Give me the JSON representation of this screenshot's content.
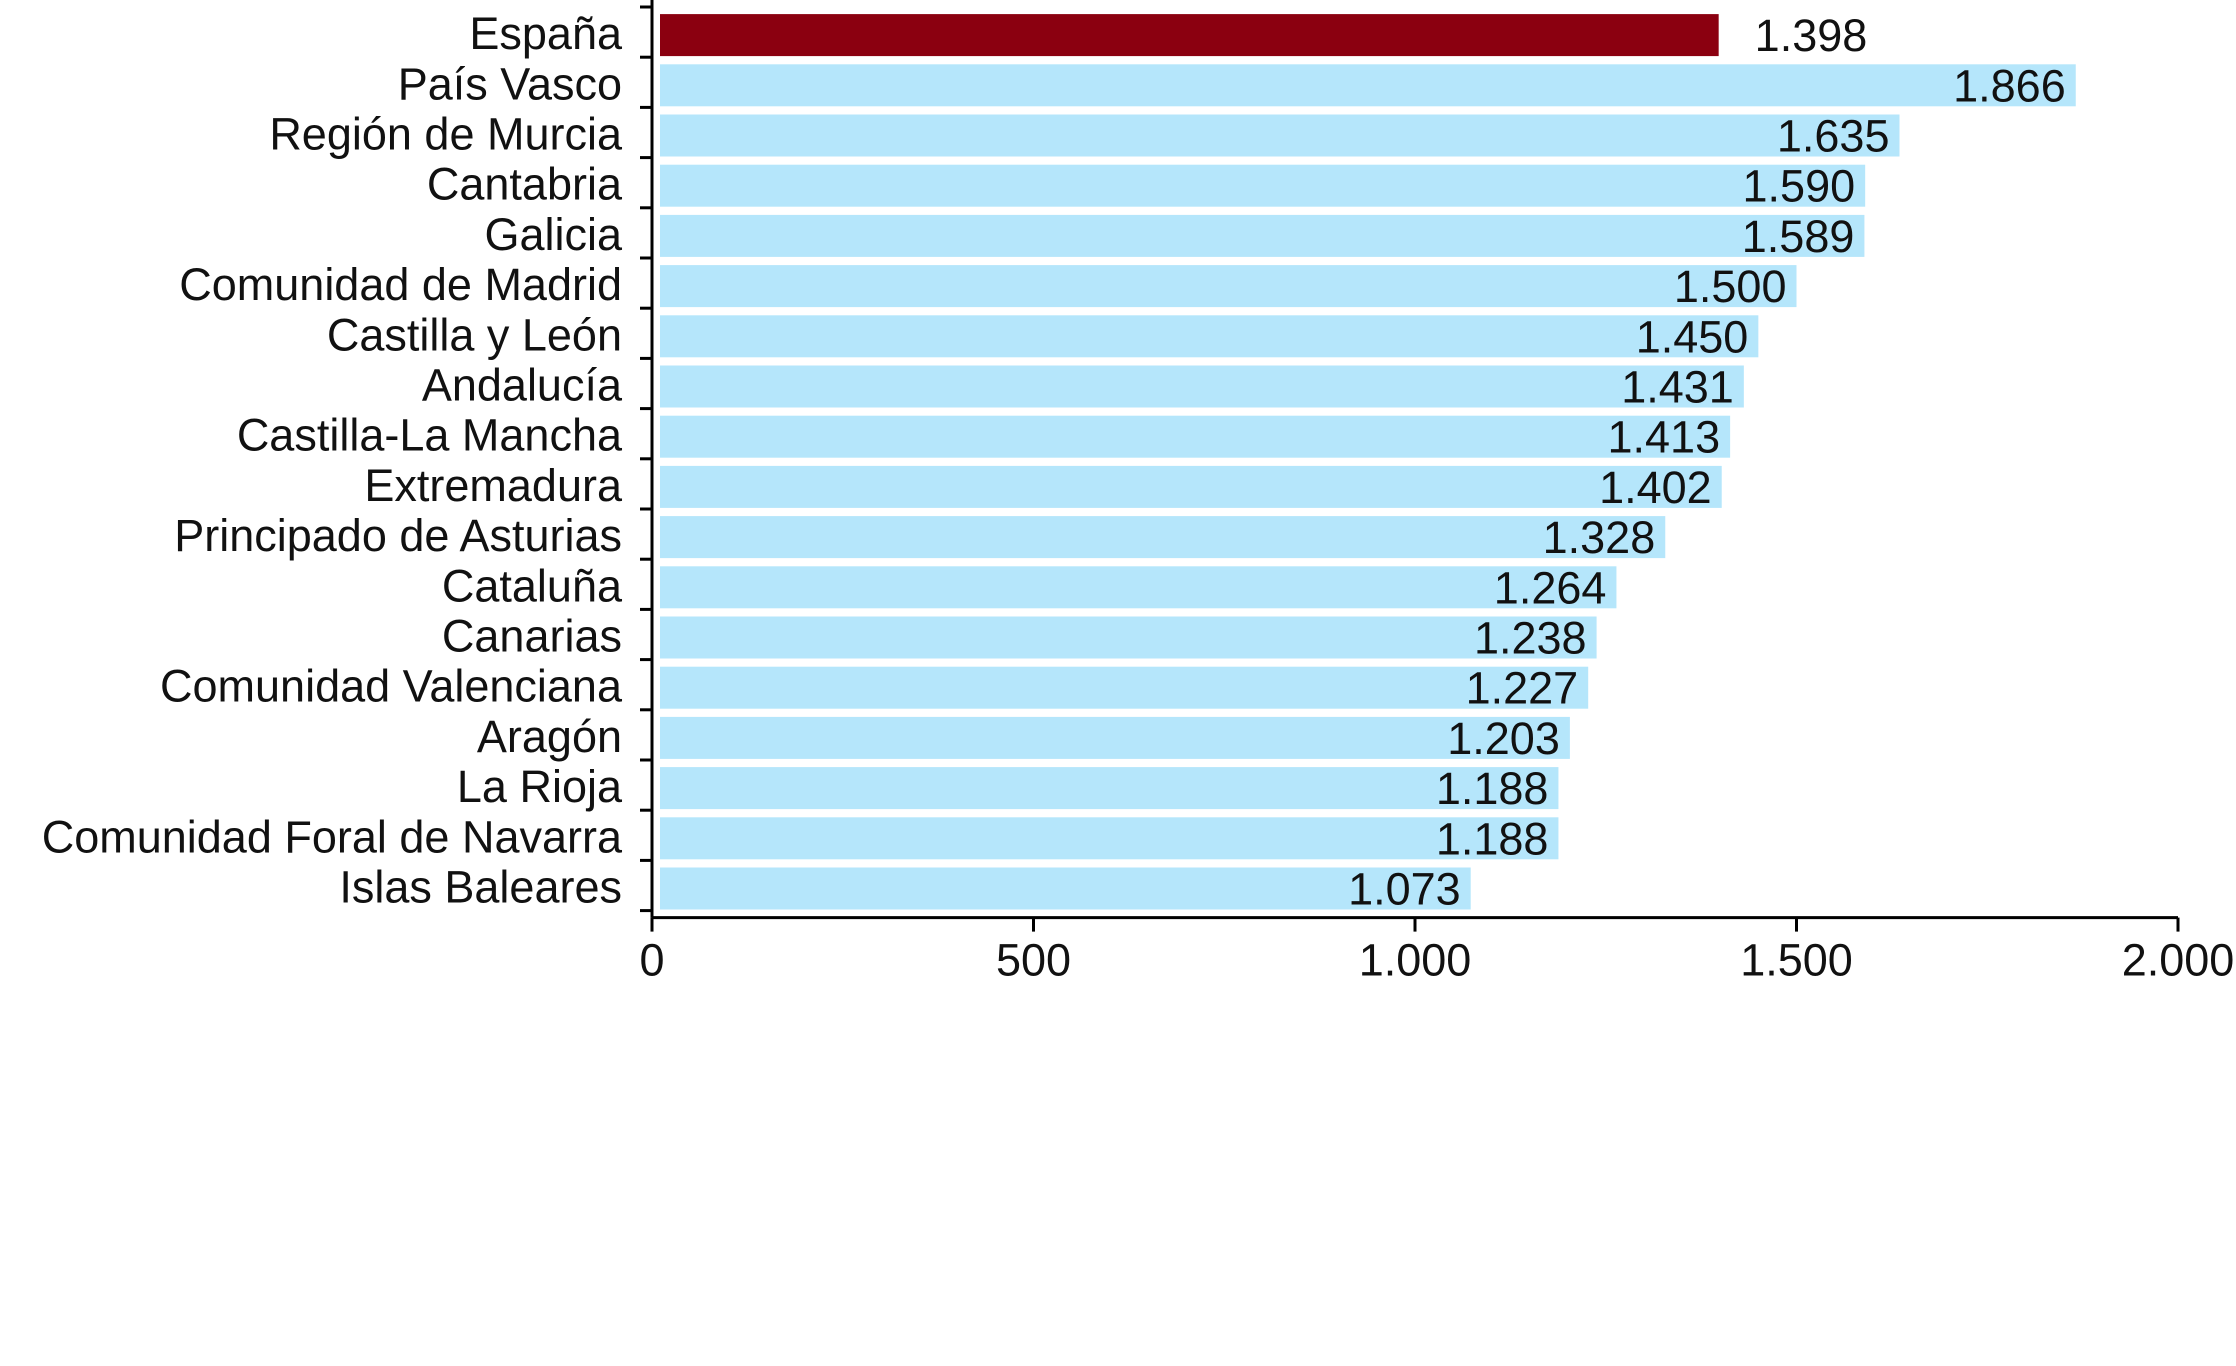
{
  "chart_data": {
    "type": "bar",
    "orientation": "horizontal",
    "title": "",
    "xlabel": "",
    "ylabel": "",
    "xlim": [
      0,
      2000
    ],
    "x_ticks": [
      0,
      500,
      1000,
      1500,
      2000
    ],
    "x_tick_labels": [
      "0",
      "500",
      "1.000",
      "1.500",
      "2.000"
    ],
    "grid": false,
    "categories": [
      "España",
      "País Vasco",
      "Región de Murcia",
      "Cantabria",
      "Galicia",
      "Comunidad de Madrid",
      "Castilla y León",
      "Andalucía",
      "Castilla-La Mancha",
      "Extremadura",
      "Principado de Asturias",
      "Cataluña",
      "Canarias",
      "Comunidad Valenciana",
      "Aragón",
      "La Rioja",
      "Comunidad Foral de Navarra",
      "Islas Baleares"
    ],
    "values": [
      1398,
      1866,
      1635,
      1590,
      1589,
      1500,
      1450,
      1431,
      1413,
      1402,
      1328,
      1264,
      1238,
      1227,
      1203,
      1188,
      1188,
      1073
    ],
    "value_labels": [
      "1.398",
      "1.866",
      "1.635",
      "1.590",
      "1.589",
      "1.500",
      "1.450",
      "1.431",
      "1.413",
      "1.402",
      "1.328",
      "1.264",
      "1.238",
      "1.227",
      "1.203",
      "1.188",
      "1.188",
      "1.073"
    ],
    "colors": {
      "highlight": "#8b0010",
      "default": "#b5e6fb",
      "axis": "#000000",
      "text": "#111111"
    },
    "highlight_category": "España"
  }
}
